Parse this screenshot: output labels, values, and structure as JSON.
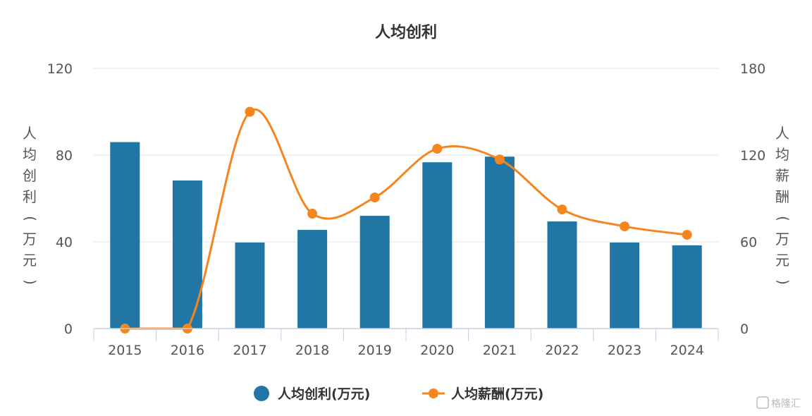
{
  "chart_data": {
    "type": "bar",
    "title": "人均创利",
    "categories": [
      "2015",
      "2016",
      "2017",
      "2018",
      "2019",
      "2020",
      "2021",
      "2022",
      "2023",
      "2024"
    ],
    "series": [
      {
        "name": "人均创利(万元)",
        "type": "bar",
        "axis": "left",
        "color": "#2176a5",
        "values": [
          86,
          68.3,
          39.7,
          45.5,
          52,
          76.7,
          79.3,
          49.4,
          39.7,
          38.4
        ]
      },
      {
        "name": "人均薪酬(万元)",
        "type": "line",
        "axis": "right",
        "color": "#f5851f",
        "values": [
          0,
          0,
          150,
          79.5,
          90.7,
          124.4,
          117,
          82.4,
          70.7,
          64.9
        ]
      }
    ],
    "left_axis": {
      "label": "人均创利(万元)",
      "ylim": [
        0,
        120
      ],
      "ticks": [
        "0",
        "40",
        "80",
        "120"
      ]
    },
    "right_axis": {
      "label": "人均薪酬(万元)",
      "ylim": [
        0,
        180
      ],
      "ticks": [
        "0",
        "60",
        "120",
        "180"
      ]
    },
    "grid": true,
    "legend_position": "bottom-center"
  },
  "watermark": "格隆汇"
}
